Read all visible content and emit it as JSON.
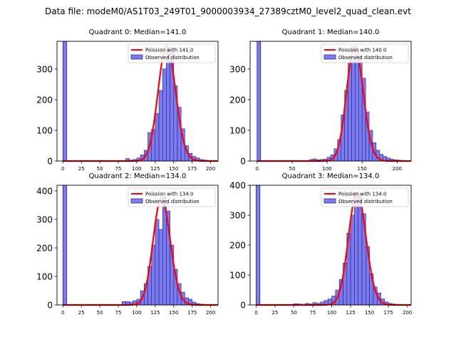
{
  "figure": {
    "title": "Data file: modeM0/AS1T03_249T01_9000003934_27389cztM0_level2_quad_clean.evt"
  },
  "style": {
    "bar_fill": "#7b7bef",
    "bar_edge": "#1f1f8a",
    "curve_color": "#ff0000"
  },
  "chart_data": [
    {
      "type": "bar",
      "title": "Quadrant 0: Median=141.0",
      "median": 141.0,
      "bin_width": 5,
      "xlim": [
        -8,
        210
      ],
      "ylim": [
        0,
        390
      ],
      "xticks": [
        0,
        25,
        50,
        75,
        100,
        125,
        150,
        175,
        200
      ],
      "yticks": [
        0,
        100,
        200,
        300
      ],
      "legend": [
        "Poission with 141.0",
        "Observed distribution"
      ],
      "legend_position": "top-right",
      "zero_bar": 390,
      "bins": [
        [
          85,
          8
        ],
        [
          90,
          3
        ],
        [
          95,
          5
        ],
        [
          100,
          10
        ],
        [
          105,
          20
        ],
        [
          110,
          35
        ],
        [
          115,
          93
        ],
        [
          120,
          103
        ],
        [
          125,
          155
        ],
        [
          130,
          230
        ],
        [
          135,
          300
        ],
        [
          140,
          365
        ],
        [
          145,
          355
        ],
        [
          150,
          245
        ],
        [
          155,
          175
        ],
        [
          160,
          105
        ],
        [
          165,
          50
        ],
        [
          170,
          25
        ],
        [
          175,
          15
        ],
        [
          180,
          10
        ],
        [
          185,
          5
        ],
        [
          190,
          3
        ],
        [
          195,
          2
        ],
        [
          200,
          1
        ]
      ]
    },
    {
      "type": "bar",
      "title": "Quadrant 1: Median=140.0",
      "median": 140.0,
      "bin_width": 5,
      "xlim": [
        -10,
        220
      ],
      "ylim": [
        0,
        390
      ],
      "xticks": [
        0,
        50,
        100,
        150,
        200
      ],
      "yticks": [
        0,
        100,
        200,
        300
      ],
      "legend": [
        "Poission with 140.0",
        "Observed distribution"
      ],
      "legend_position": "top-right",
      "zero_bar": 390,
      "bins": [
        [
          75,
          5
        ],
        [
          80,
          7
        ],
        [
          85,
          4
        ],
        [
          90,
          5
        ],
        [
          95,
          6
        ],
        [
          100,
          12
        ],
        [
          105,
          20
        ],
        [
          110,
          40
        ],
        [
          115,
          70
        ],
        [
          120,
          150
        ],
        [
          125,
          230
        ],
        [
          130,
          320
        ],
        [
          135,
          340
        ],
        [
          140,
          365
        ],
        [
          145,
          340
        ],
        [
          150,
          270
        ],
        [
          155,
          160
        ],
        [
          160,
          100
        ],
        [
          165,
          60
        ],
        [
          170,
          35
        ],
        [
          175,
          22
        ],
        [
          180,
          15
        ],
        [
          185,
          10
        ],
        [
          190,
          6
        ],
        [
          195,
          4
        ],
        [
          200,
          3
        ],
        [
          205,
          2
        ]
      ]
    },
    {
      "type": "bar",
      "title": "Quadrant 2: Median=134.0",
      "median": 134.0,
      "bin_width": 5,
      "xlim": [
        -8,
        210
      ],
      "ylim": [
        0,
        420
      ],
      "xticks": [
        0,
        25,
        50,
        75,
        100,
        125,
        150,
        175,
        200
      ],
      "yticks": [
        0,
        100,
        200,
        300,
        400
      ],
      "legend": [
        "Poission with 134.0",
        "Observed distribution"
      ],
      "legend_position": "top-right",
      "zero_bar": 420,
      "bins": [
        [
          80,
          12
        ],
        [
          85,
          12
        ],
        [
          90,
          10
        ],
        [
          95,
          15
        ],
        [
          100,
          20
        ],
        [
          105,
          50
        ],
        [
          110,
          75
        ],
        [
          115,
          135
        ],
        [
          120,
          210
        ],
        [
          125,
          300
        ],
        [
          130,
          265
        ],
        [
          135,
          380
        ],
        [
          140,
          330
        ],
        [
          145,
          210
        ],
        [
          150,
          125
        ],
        [
          155,
          75
        ],
        [
          160,
          45
        ],
        [
          165,
          25
        ],
        [
          170,
          20
        ],
        [
          175,
          10
        ],
        [
          180,
          5
        ],
        [
          185,
          3
        ],
        [
          190,
          2
        ]
      ]
    },
    {
      "type": "bar",
      "title": "Quadrant 3: Median=134.0",
      "median": 134.0,
      "bin_width": 5,
      "xlim": [
        -8,
        205
      ],
      "ylim": [
        0,
        400
      ],
      "xticks": [
        0,
        25,
        50,
        75,
        100,
        125,
        150,
        175,
        200
      ],
      "yticks": [
        0,
        100,
        200,
        300,
        400
      ],
      "legend": [
        "Poission with 134.0",
        "Observed distribution"
      ],
      "legend_position": "top-right",
      "zero_bar": 400,
      "bins": [
        [
          50,
          4
        ],
        [
          55,
          3
        ],
        [
          60,
          2
        ],
        [
          65,
          5
        ],
        [
          70,
          3
        ],
        [
          75,
          8
        ],
        [
          80,
          5
        ],
        [
          85,
          10
        ],
        [
          90,
          15
        ],
        [
          95,
          20
        ],
        [
          100,
          30
        ],
        [
          105,
          50
        ],
        [
          110,
          85
        ],
        [
          115,
          140
        ],
        [
          120,
          240
        ],
        [
          125,
          300
        ],
        [
          130,
          375
        ],
        [
          135,
          370
        ],
        [
          140,
          305
        ],
        [
          145,
          195
        ],
        [
          150,
          105
        ],
        [
          155,
          60
        ],
        [
          160,
          40
        ],
        [
          165,
          20
        ],
        [
          170,
          10
        ],
        [
          175,
          5
        ],
        [
          180,
          3
        ],
        [
          185,
          2
        ]
      ]
    }
  ]
}
